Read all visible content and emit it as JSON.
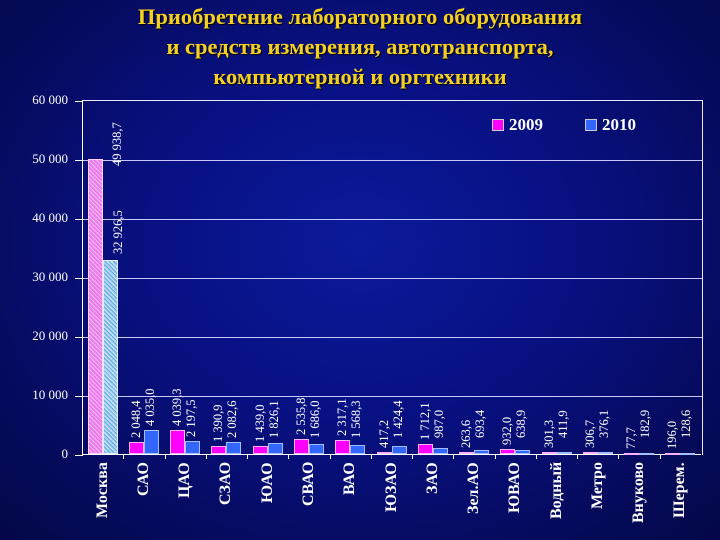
{
  "title": {
    "lines": [
      "Приобретение лабораторного оборудования",
      "и средств измерения, автотранспорта,",
      "компьютерной и оргтехники"
    ]
  },
  "legend": [
    {
      "label": "2009",
      "color": "#ff00ff"
    },
    {
      "label": "2010",
      "color": "#3366ff"
    }
  ],
  "y_axis": {
    "ticks": [
      "0",
      "10 000",
      "20 000",
      "30 000",
      "40 000",
      "50 000",
      "60 000"
    ]
  },
  "chart_data": {
    "type": "bar",
    "title": "Приобретение лабораторного оборудования и средств измерения, автотранспорта, компьютерной и оргтехники",
    "xlabel": "",
    "ylabel": "",
    "ylim": [
      0,
      60000
    ],
    "grid": true,
    "legend_position": "top-right",
    "categories": [
      "Москва",
      "САО",
      "ЦАО",
      "СЗАО",
      "ЮАО",
      "СВАО",
      "ВАО",
      "ЮЗАО",
      "ЗАО",
      "Зел.АО",
      "ЮВАО",
      "Водный",
      "Метро",
      "Внуково",
      "Шерем."
    ],
    "series": [
      {
        "name": "2009",
        "color": "#ff00ff",
        "values": [
          49938.7,
          2048.4,
          4039.3,
          1390.9,
          1439.0,
          2535.8,
          2317.1,
          417.2,
          1712.1,
          263.6,
          932.0,
          301.3,
          306.7,
          77.7,
          196.0
        ],
        "labels": [
          "49 938,7",
          "2 048,4",
          "4 039,3",
          "1 390,9",
          "1 439,0",
          "2 535,8",
          "2 317,1",
          "417,2",
          "1 712,1",
          "263,6",
          "932,0",
          "301,3",
          "306,7",
          "77,7",
          "196,0"
        ]
      },
      {
        "name": "2010",
        "color": "#3366ff",
        "values": [
          32926.5,
          4035.0,
          2197.5,
          2082.6,
          1826.1,
          1686.0,
          1568.3,
          1424.4,
          987.0,
          693.4,
          638.9,
          411.9,
          376.1,
          182.9,
          128.6
        ],
        "labels": [
          "32 926,5",
          "4 035,0",
          "2 197,5",
          "2 082,6",
          "1 826,1",
          "1 686,0",
          "1 568,3",
          "1 424,4",
          "987,0",
          "693,4",
          "638,9",
          "411,9",
          "376,1",
          "182,9",
          "128,6"
        ]
      }
    ]
  }
}
